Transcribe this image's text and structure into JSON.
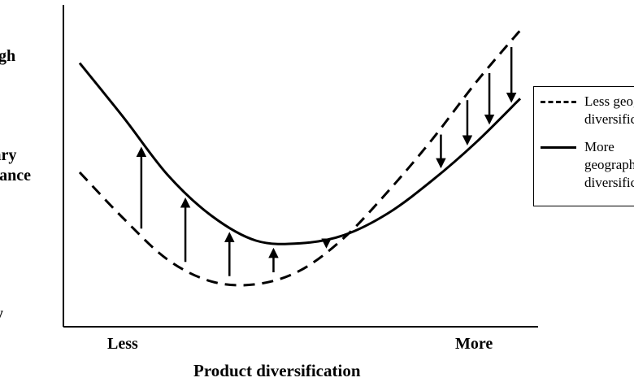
{
  "chart_data": {
    "type": "line",
    "title": "",
    "xlabel": "Product diversification",
    "ylabel": [
      "gh",
      "iary",
      "nance",
      "y"
    ],
    "x_ticks": [
      "Less",
      "More"
    ],
    "x": [
      0.0,
      0.1,
      0.2,
      0.3,
      0.4,
      0.5,
      0.6,
      0.7,
      0.8,
      0.9,
      1.0
    ],
    "xlim": [
      0,
      1
    ],
    "ylim": [
      0,
      1
    ],
    "series": [
      {
        "name": "Less geographic diversification",
        "style": "dashed",
        "values": [
          0.5,
          0.33,
          0.18,
          0.1,
          0.09,
          0.14,
          0.26,
          0.43,
          0.62,
          0.83,
          1.02
        ]
      },
      {
        "name": "More geographic diversification",
        "style": "solid",
        "values": [
          0.9,
          0.7,
          0.49,
          0.34,
          0.25,
          0.24,
          0.27,
          0.35,
          0.47,
          0.61,
          0.77
        ]
      }
    ],
    "arrows": [
      {
        "x": 0.14,
        "direction": "up"
      },
      {
        "x": 0.24,
        "direction": "up"
      },
      {
        "x": 0.34,
        "direction": "up"
      },
      {
        "x": 0.44,
        "direction": "up"
      },
      {
        "x": 0.56,
        "direction": "up"
      },
      {
        "x": 0.82,
        "direction": "down"
      },
      {
        "x": 0.88,
        "direction": "down"
      },
      {
        "x": 0.93,
        "direction": "down"
      },
      {
        "x": 0.98,
        "direction": "down"
      }
    ],
    "legend": {
      "placement": "right",
      "dashed_label_lines": [
        "Less geographic",
        "diversification"
      ],
      "solid_label_lines": [
        "More",
        "geographic",
        "diversification"
      ]
    },
    "grid": false,
    "colors": {
      "lines": "#000000",
      "background": "#ffffff"
    }
  },
  "yaxis_labels": {
    "high": "gh",
    "mid1": "iary",
    "mid2": "nance",
    "low": "y"
  }
}
